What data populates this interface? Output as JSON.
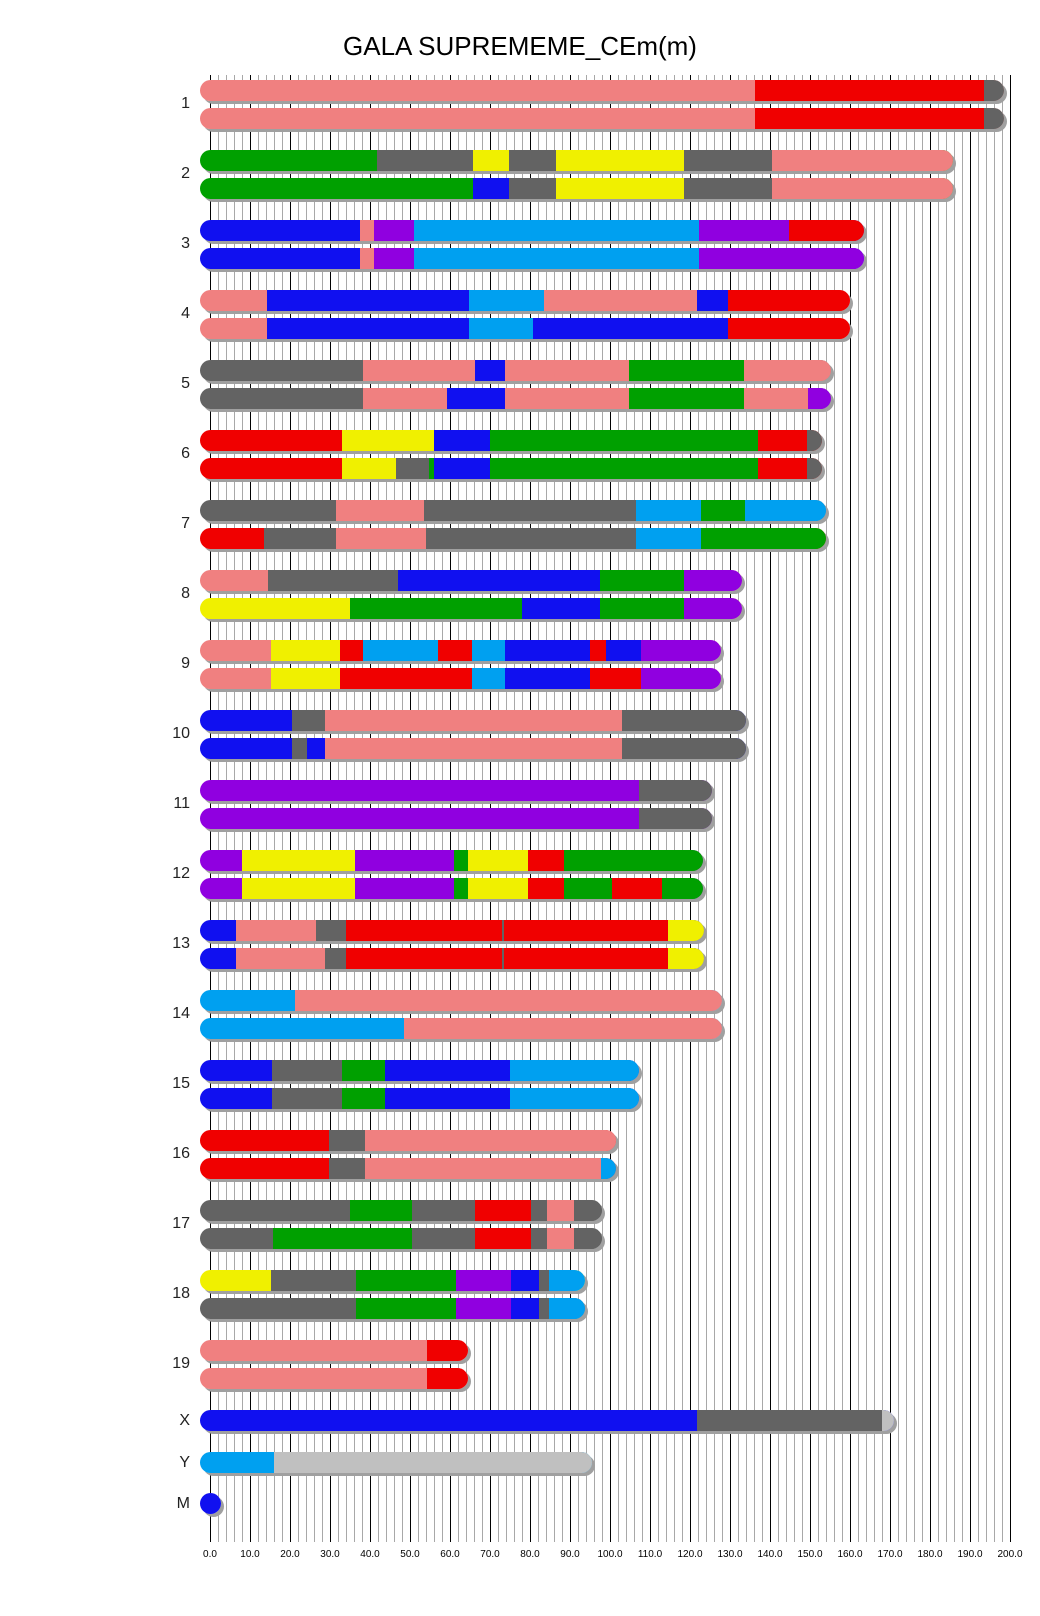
{
  "chart_data": {
    "type": "chromosome-painting",
    "title": "GALA SUPREMEME_CEm(m)",
    "xlabel": "",
    "ylabel": "",
    "xlim": [
      0,
      200
    ],
    "grid": {
      "minor_step": 2,
      "major_step": 10
    },
    "x_ticks": [
      "0.0",
      "10.0",
      "20.0",
      "30.0",
      "40.0",
      "50.0",
      "60.0",
      "70.0",
      "80.0",
      "90.0",
      "100.0",
      "110.0",
      "120.0",
      "130.0",
      "140.0",
      "150.0",
      "160.0",
      "170.0",
      "180.0",
      "190.0",
      "200.0"
    ],
    "colors": {
      "S": "#f08080",
      "R": "#f00000",
      "D": "#636363",
      "G": "#00a000",
      "Y": "#f0f000",
      "B": "#1010f0",
      "L": "#00a0f0",
      "P": "#9000e0",
      "K": "#c0c0c0"
    },
    "chromosomes": [
      {
        "label": "1",
        "copies": [
          [
            [
              136.2,
              "S"
            ],
            [
              193.4,
              "R"
            ],
            [
              198.5,
              "D"
            ]
          ],
          [
            [
              136.2,
              "S"
            ],
            [
              193.4,
              "R"
            ],
            [
              198.5,
              "D"
            ]
          ]
        ]
      },
      {
        "label": "2",
        "copies": [
          [
            [
              41.8,
              "G"
            ],
            [
              65.8,
              "D"
            ],
            [
              74.7,
              "Y"
            ],
            [
              86.4,
              "D"
            ],
            [
              118.6,
              "Y"
            ],
            [
              140.5,
              "D"
            ],
            [
              185.8,
              "S"
            ]
          ],
          [
            [
              65.8,
              "G"
            ],
            [
              74.7,
              "B"
            ],
            [
              86.4,
              "D"
            ],
            [
              118.6,
              "Y"
            ],
            [
              140.5,
              "D"
            ],
            [
              185.8,
              "S"
            ]
          ]
        ]
      },
      {
        "label": "3",
        "copies": [
          [
            [
              37.4,
              "B"
            ],
            [
              41.0,
              "S"
            ],
            [
              51.0,
              "P"
            ],
            [
              122.3,
              "L"
            ],
            [
              144.7,
              "P"
            ],
            [
              163.5,
              "R"
            ]
          ],
          [
            [
              37.4,
              "B"
            ],
            [
              41.0,
              "S"
            ],
            [
              51.0,
              "P"
            ],
            [
              122.3,
              "L"
            ],
            [
              163.5,
              "P"
            ]
          ]
        ]
      },
      {
        "label": "4",
        "copies": [
          [
            [
              14.3,
              "S"
            ],
            [
              64.8,
              "B"
            ],
            [
              83.6,
              "L"
            ],
            [
              121.8,
              "S"
            ],
            [
              129.6,
              "B"
            ],
            [
              159.9,
              "R"
            ]
          ],
          [
            [
              14.3,
              "S"
            ],
            [
              64.8,
              "B"
            ],
            [
              80.8,
              "L"
            ],
            [
              129.6,
              "B"
            ],
            [
              159.9,
              "R"
            ]
          ]
        ]
      },
      {
        "label": "5",
        "copies": [
          [
            [
              38.3,
              "D"
            ],
            [
              66.2,
              "S"
            ],
            [
              73.8,
              "B"
            ],
            [
              104.7,
              "S"
            ],
            [
              133.6,
              "G"
            ],
            [
              155.3,
              "S"
            ]
          ],
          [
            [
              38.3,
              "D"
            ],
            [
              59.2,
              "S"
            ],
            [
              73.8,
              "B"
            ],
            [
              104.7,
              "S"
            ],
            [
              133.6,
              "G"
            ],
            [
              149.5,
              "S"
            ],
            [
              155.3,
              "P"
            ]
          ]
        ]
      },
      {
        "label": "6",
        "copies": [
          [
            [
              32.9,
              "R"
            ],
            [
              56.1,
              "Y"
            ],
            [
              70.0,
              "B"
            ],
            [
              136.9,
              "G"
            ],
            [
              149.2,
              "R"
            ],
            [
              153.1,
              "D"
            ]
          ],
          [
            [
              32.9,
              "R"
            ],
            [
              46.4,
              "Y"
            ],
            [
              54.7,
              "D"
            ],
            [
              56.1,
              "G"
            ],
            [
              70.0,
              "B"
            ],
            [
              136.9,
              "G"
            ],
            [
              149.2,
              "R"
            ],
            [
              153.1,
              "D"
            ]
          ]
        ]
      },
      {
        "label": "7",
        "copies": [
          [
            [
              31.6,
              "D"
            ],
            [
              53.6,
              "S"
            ],
            [
              106.6,
              "D"
            ],
            [
              122.7,
              "L"
            ],
            [
              133.8,
              "G"
            ],
            [
              154.0,
              "L"
            ]
          ],
          [
            [
              13.6,
              "R"
            ],
            [
              31.6,
              "D"
            ],
            [
              53.9,
              "S"
            ],
            [
              106.6,
              "D"
            ],
            [
              122.7,
              "L"
            ],
            [
              154.0,
              "G"
            ]
          ]
        ]
      },
      {
        "label": "8",
        "copies": [
          [
            [
              14.5,
              "S"
            ],
            [
              46.9,
              "D"
            ],
            [
              97.5,
              "B"
            ],
            [
              118.6,
              "G"
            ],
            [
              133.0,
              "P"
            ]
          ],
          [
            [
              34.9,
              "Y"
            ],
            [
              78.1,
              "G"
            ],
            [
              97.5,
              "B"
            ],
            [
              118.6,
              "G"
            ],
            [
              133.0,
              "P"
            ]
          ]
        ]
      },
      {
        "label": "9",
        "copies": [
          [
            [
              15.2,
              "S"
            ],
            [
              32.5,
              "Y"
            ],
            [
              38.3,
              "R"
            ],
            [
              57.1,
              "L"
            ],
            [
              65.5,
              "R"
            ],
            [
              73.8,
              "L"
            ],
            [
              94.9,
              "B"
            ],
            [
              99.0,
              "R"
            ],
            [
              107.8,
              "B"
            ],
            [
              127.8,
              "P"
            ]
          ],
          [
            [
              15.2,
              "S"
            ],
            [
              32.5,
              "Y"
            ],
            [
              65.5,
              "R"
            ],
            [
              73.8,
              "L"
            ],
            [
              94.9,
              "B"
            ],
            [
              107.8,
              "R"
            ],
            [
              127.8,
              "P"
            ]
          ]
        ]
      },
      {
        "label": "10",
        "copies": [
          [
            [
              20.4,
              "B"
            ],
            [
              28.8,
              "D"
            ],
            [
              103.1,
              "S"
            ],
            [
              133.9,
              "D"
            ]
          ],
          [
            [
              20.4,
              "B"
            ],
            [
              24.3,
              "D"
            ],
            [
              28.8,
              "B"
            ],
            [
              103.1,
              "S"
            ],
            [
              133.9,
              "D"
            ]
          ]
        ]
      },
      {
        "label": "11",
        "copies": [
          [
            [
              107.3,
              "P"
            ],
            [
              125.5,
              "D"
            ]
          ],
          [
            [
              107.3,
              "P"
            ],
            [
              125.5,
              "D"
            ]
          ]
        ]
      },
      {
        "label": "12",
        "copies": [
          [
            [
              7.9,
              "P"
            ],
            [
              36.2,
              "Y"
            ],
            [
              60.9,
              "P"
            ],
            [
              64.4,
              "G"
            ],
            [
              79.4,
              "Y"
            ],
            [
              88.4,
              "R"
            ],
            [
              123.2,
              "G"
            ]
          ],
          [
            [
              7.9,
              "P"
            ],
            [
              36.2,
              "Y"
            ],
            [
              60.9,
              "P"
            ],
            [
              64.4,
              "G"
            ],
            [
              79.4,
              "Y"
            ],
            [
              88.4,
              "R"
            ],
            [
              100.4,
              "G"
            ],
            [
              113.1,
              "R"
            ],
            [
              123.2,
              "G"
            ]
          ]
        ]
      },
      {
        "label": "13",
        "copies": [
          [
            [
              6.4,
              "B"
            ],
            [
              26.5,
              "S"
            ],
            [
              33.9,
              "D"
            ],
            [
              72.9,
              "R"
            ],
            [
              73.6,
              "D"
            ],
            [
              114.4,
              "R"
            ],
            [
              123.5,
              "Y"
            ]
          ],
          [
            [
              6.4,
              "B"
            ],
            [
              28.7,
              "S"
            ],
            [
              33.9,
              "D"
            ],
            [
              72.9,
              "R"
            ],
            [
              73.6,
              "D"
            ],
            [
              114.4,
              "R"
            ],
            [
              123.5,
              "Y"
            ]
          ]
        ]
      },
      {
        "label": "14",
        "copies": [
          [
            [
              21.3,
              "L"
            ],
            [
              128.1,
              "S"
            ]
          ],
          [
            [
              48.6,
              "L"
            ],
            [
              128.1,
              "S"
            ]
          ]
        ]
      },
      {
        "label": "15",
        "copies": [
          [
            [
              15.6,
              "B"
            ],
            [
              33.1,
              "D"
            ],
            [
              43.8,
              "G"
            ],
            [
              74.9,
              "B"
            ],
            [
              107.3,
              "L"
            ]
          ],
          [
            [
              15.6,
              "B"
            ],
            [
              33.1,
              "D"
            ],
            [
              43.8,
              "G"
            ],
            [
              74.9,
              "B"
            ],
            [
              107.3,
              "L"
            ]
          ]
        ]
      },
      {
        "label": "16",
        "copies": [
          [
            [
              29.7,
              "R"
            ],
            [
              38.7,
              "D"
            ],
            [
              101.4,
              "S"
            ]
          ],
          [
            [
              29.7,
              "R"
            ],
            [
              38.7,
              "D"
            ],
            [
              97.7,
              "S"
            ],
            [
              101.4,
              "L"
            ]
          ]
        ]
      },
      {
        "label": "17",
        "copies": [
          [
            [
              34.9,
              "D"
            ],
            [
              50.4,
              "G"
            ],
            [
              66.2,
              "D"
            ],
            [
              80.3,
              "R"
            ],
            [
              84.3,
              "D"
            ],
            [
              90.9,
              "S"
            ],
            [
              97.9,
              "D"
            ]
          ],
          [
            [
              15.8,
              "D"
            ],
            [
              50.4,
              "G"
            ],
            [
              66.2,
              "D"
            ],
            [
              80.3,
              "R"
            ],
            [
              84.3,
              "D"
            ],
            [
              90.9,
              "S"
            ],
            [
              97.9,
              "D"
            ]
          ]
        ]
      },
      {
        "label": "18",
        "copies": [
          [
            [
              15.2,
              "Y"
            ],
            [
              36.4,
              "D"
            ],
            [
              61.6,
              "G"
            ],
            [
              75.2,
              "P"
            ],
            [
              82.2,
              "B"
            ],
            [
              84.7,
              "D"
            ],
            [
              93.8,
              "L"
            ]
          ],
          [
            [
              36.4,
              "D"
            ],
            [
              61.6,
              "G"
            ],
            [
              75.2,
              "P"
            ],
            [
              82.2,
              "B"
            ],
            [
              84.7,
              "D"
            ],
            [
              93.8,
              "L"
            ]
          ]
        ]
      },
      {
        "label": "19",
        "copies": [
          [
            [
              54.2,
              "S"
            ],
            [
              64.4,
              "R"
            ]
          ],
          [
            [
              54.2,
              "S"
            ],
            [
              64.4,
              "R"
            ]
          ]
        ]
      },
      {
        "label": "X",
        "copies": [
          [
            [
              121.7,
              "B"
            ],
            [
              168.0,
              "D"
            ],
            [
              171.0,
              "K"
            ]
          ]
        ]
      },
      {
        "label": "Y",
        "copies": [
          [
            [
              16.0,
              "L"
            ],
            [
              95.5,
              "K"
            ]
          ]
        ]
      },
      {
        "label": "M",
        "copies": [
          [
            [
              2.7,
              "B"
            ]
          ]
        ]
      }
    ]
  }
}
